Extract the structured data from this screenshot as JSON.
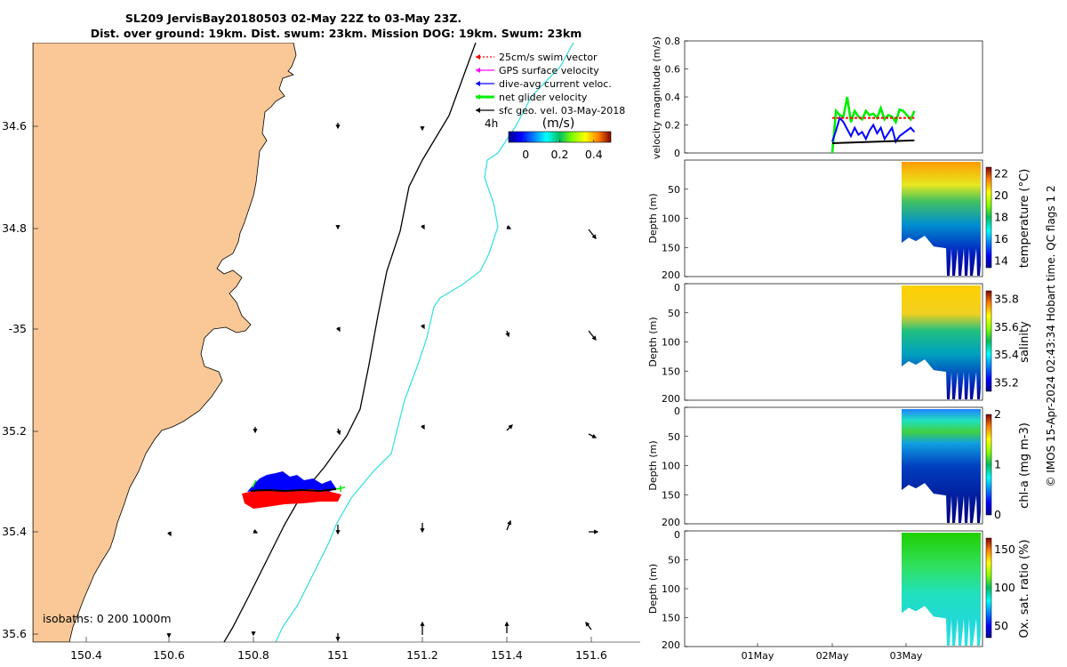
{
  "title": {
    "line1": "SL209 JervisBay20180503 02-May 22Z to 03-May 23Z.",
    "line2": "Dist. over ground: 19km. Dist. swum: 23km. Mission DOG: 19km. Swum: 23km"
  },
  "copyright": "© IMOS 15-Apr-2024 02:43:34 Hobart time. QC flags 1  2",
  "map": {
    "lon_ticks": [
      "150.4",
      "150.6",
      "150.8",
      "151",
      "151.2",
      "151.4",
      "151.6"
    ],
    "lat_ticks": [
      "34.6",
      "34.8",
      "-35",
      "35.2",
      "35.4",
      "35.6"
    ],
    "xlim": [
      150.25,
      151.75
    ],
    "ylim": [
      -35.62,
      -34.43
    ],
    "legend": [
      {
        "label": "25cm/s swim vector",
        "color": "#ff0000",
        "style": "dotted"
      },
      {
        "label": "GPS surface velocity",
        "color": "#ff00ff",
        "style": "solid"
      },
      {
        "label": "dive-avg current veloc.",
        "color": "#0000ff",
        "style": "solid"
      },
      {
        "label": "net glider velocity",
        "color": "#00ee00",
        "style": "thick"
      },
      {
        "label": "sfc geo. vel. 03-May-2018",
        "color": "#000000",
        "style": "solid"
      }
    ],
    "colorbar": {
      "label": "(m/s)",
      "time_label": "4h",
      "ticks": [
        "0",
        "0.2",
        "0.4"
      ],
      "range": [
        -0.1,
        0.5
      ]
    },
    "isobaths_label": "isobaths: 0   200  1000m",
    "land_color": "#f9c896",
    "isobath_200_color": "#000000",
    "isobath_1000_color": "#40e0e0"
  },
  "panels": {
    "xticks": [
      "01May",
      "02May",
      "03May"
    ],
    "velocity": {
      "ylabel": "velocity magnitude (m/s)",
      "yticks": [
        "0",
        "0.2",
        "0.4",
        "0.6",
        "0.8"
      ],
      "ylim": [
        0,
        0.8
      ]
    },
    "temperature": {
      "ylabel": "Depth (m)",
      "clabel": "temperature (°C)",
      "cticks": [
        "14",
        "16",
        "18",
        "20",
        "22"
      ],
      "yticks": [
        "50",
        "100",
        "150",
        "200"
      ]
    },
    "salinity": {
      "ylabel": "Depth (m)",
      "clabel": "salinity",
      "cticks": [
        "35.2",
        "35.4",
        "35.6",
        "35.8"
      ],
      "yticks": [
        "0",
        "50",
        "100",
        "150",
        "200"
      ]
    },
    "chla": {
      "ylabel": "Depth (m)",
      "clabel": "chl-a (mg m-3)",
      "cticks": [
        "0",
        "1",
        "2"
      ],
      "yticks": [
        "0",
        "50",
        "100",
        "150",
        "200"
      ]
    },
    "oxygen": {
      "ylabel": "Depth (m)",
      "clabel": "Ox. sat. ratio (%)",
      "cticks": [
        "50",
        "100",
        "150"
      ],
      "yticks": [
        "0",
        "50",
        "100",
        "150",
        "200"
      ]
    }
  },
  "chart_data": [
    {
      "type": "line",
      "panel": "velocity",
      "x_unit": "days since 01May",
      "series": [
        {
          "name": "net glider velocity",
          "color": "#00ee00",
          "x": [
            2.0,
            2.05,
            2.1,
            2.15,
            2.2,
            2.25,
            2.3,
            2.35,
            2.4,
            2.45,
            2.5,
            2.55,
            2.6,
            2.65,
            2.7,
            2.75,
            2.8,
            2.85,
            2.9,
            2.95,
            3.0,
            3.05,
            3.1
          ],
          "y": [
            0.0,
            0.3,
            0.27,
            0.26,
            0.4,
            0.22,
            0.3,
            0.26,
            0.24,
            0.3,
            0.27,
            0.28,
            0.25,
            0.32,
            0.24,
            0.27,
            0.26,
            0.22,
            0.31,
            0.3,
            0.27,
            0.24,
            0.3
          ]
        },
        {
          "name": "dive-avg current veloc.",
          "color": "#0000ff",
          "x": [
            2.0,
            2.05,
            2.1,
            2.15,
            2.2,
            2.25,
            2.3,
            2.35,
            2.4,
            2.45,
            2.5,
            2.55,
            2.6,
            2.65,
            2.7,
            2.75,
            2.8,
            2.85,
            2.9,
            2.95,
            3.0,
            3.05,
            3.1
          ],
          "y": [
            0.08,
            0.16,
            0.25,
            0.22,
            0.17,
            0.12,
            0.18,
            0.13,
            0.15,
            0.1,
            0.16,
            0.2,
            0.14,
            0.18,
            0.1,
            0.14,
            0.18,
            0.08,
            0.12,
            0.14,
            0.16,
            0.18,
            0.15
          ]
        },
        {
          "name": "25cm/s swim vector",
          "color": "#ff0000",
          "dashed": true,
          "x": [
            2.0,
            3.1
          ],
          "y": [
            0.25,
            0.25
          ]
        },
        {
          "name": "sfc geo. vel. 03-May-2018",
          "color": "#000000",
          "x": [
            2.0,
            3.1
          ],
          "y": [
            0.07,
            0.09
          ]
        }
      ]
    }
  ]
}
